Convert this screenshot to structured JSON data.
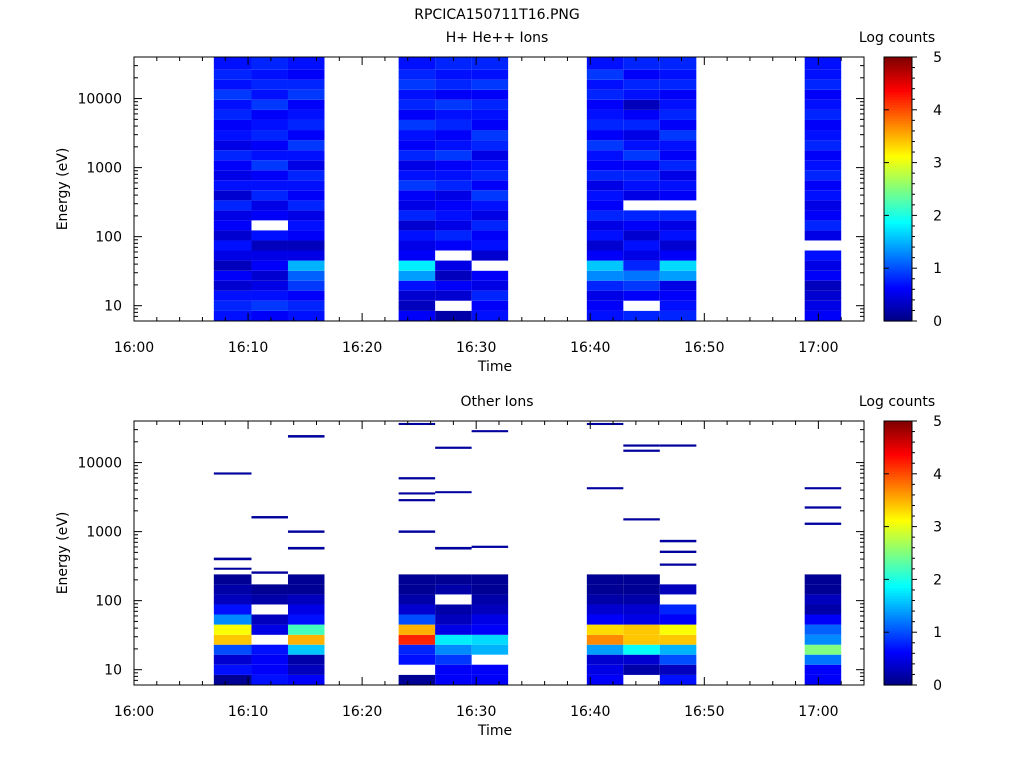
{
  "figure_title": "RPCICA150711T16.PNG",
  "chart_data": [
    {
      "type": "heatmap",
      "subtitle": "H+ He++ Ions",
      "xlabel": "Time",
      "ylabel": "Energy (eV)",
      "x_ticks": [
        "16:00",
        "16:10",
        "16:20",
        "16:30",
        "16:40",
        "16:50",
        "17:00"
      ],
      "x_range_min": [
        0,
        64
      ],
      "y_scale": "log",
      "y_ticks": [
        "10",
        "100",
        "1000",
        "10000"
      ],
      "y_ticks_values": [
        10,
        100,
        1000,
        10000
      ],
      "y_range": [
        6,
        40000
      ],
      "colorbar": {
        "label": "Log counts",
        "ticks": [
          "0",
          "1",
          "2",
          "3",
          "4",
          "5"
        ],
        "range": [
          0,
          5
        ],
        "colormap": "jet"
      },
      "time_columns_min": [
        [
          7,
          10.3
        ],
        [
          10.3,
          13.5
        ],
        [
          13.5,
          16.7
        ],
        [
          23.2,
          26.4
        ],
        [
          26.4,
          29.6
        ],
        [
          29.6,
          32.8
        ],
        [
          39.7,
          42.9
        ],
        [
          42.9,
          46.1
        ],
        [
          46.1,
          49.3
        ],
        [
          58.8,
          62
        ]
      ],
      "energy_bins_ev": [
        [
          6,
          8.4
        ],
        [
          8.4,
          11.8
        ],
        [
          11.8,
          16.5
        ],
        [
          16.5,
          23
        ],
        [
          23,
          32
        ],
        [
          32,
          45
        ],
        [
          45,
          63
        ],
        [
          63,
          88
        ],
        [
          88,
          123
        ],
        [
          123,
          172
        ],
        [
          172,
          240
        ],
        [
          240,
          335
        ],
        [
          335,
          470
        ],
        [
          470,
          655
        ],
        [
          655,
          915
        ],
        [
          915,
          1280
        ],
        [
          1280,
          1790
        ],
        [
          1790,
          2500
        ],
        [
          2500,
          3500
        ],
        [
          3500,
          4900
        ],
        [
          4900,
          6850
        ],
        [
          6850,
          9600
        ],
        [
          9600,
          13400
        ],
        [
          13400,
          18700
        ],
        [
          18700,
          26200
        ],
        [
          26200,
          40000
        ]
      ],
      "log_counts": [
        [
          0.7,
          0.8,
          0.7,
          0.4,
          0.6,
          0.3,
          0.5,
          0.7,
          0.4,
          0.6,
          0.5,
          0.8,
          0.4,
          0.7,
          0.5,
          0.6,
          0.8,
          0.5,
          0.7,
          0.6,
          0.8,
          0.7,
          0.9,
          0.7,
          0.8,
          0.7
        ],
        [
          0.6,
          0.9,
          0.7,
          0.5,
          0.4,
          0.6,
          0.5,
          0.3,
          0.7,
          null,
          0.6,
          0.5,
          0.8,
          0.7,
          0.6,
          0.9,
          0.7,
          0.6,
          0.8,
          0.7,
          0.6,
          0.9,
          0.7,
          0.8,
          0.7,
          0.8
        ],
        [
          0.7,
          0.8,
          0.6,
          0.9,
          1.1,
          1.5,
          0.5,
          0.3,
          0.6,
          0.7,
          0.5,
          0.8,
          0.6,
          0.7,
          0.8,
          0.5,
          0.7,
          0.9,
          0.6,
          0.8,
          0.7,
          0.6,
          0.9,
          0.8,
          0.6,
          0.7
        ],
        [
          0.6,
          0.3,
          0.4,
          0.7,
          1.4,
          1.8,
          0.6,
          0.5,
          0.7,
          0.4,
          0.8,
          0.5,
          0.6,
          0.9,
          0.7,
          0.5,
          0.8,
          0.6,
          0.7,
          0.9,
          0.6,
          0.8,
          0.7,
          0.9,
          0.8,
          0.7
        ],
        [
          0.2,
          null,
          0.4,
          0.6,
          0.3,
          0.5,
          null,
          0.6,
          0.8,
          0.5,
          0.7,
          0.6,
          0.5,
          0.8,
          0.7,
          0.6,
          0.9,
          0.7,
          0.6,
          0.8,
          0.7,
          0.9,
          0.6,
          0.8,
          0.7,
          0.8
        ],
        [
          0.7,
          0.6,
          0.8,
          0.5,
          0.6,
          null,
          0.4,
          0.7,
          0.6,
          0.8,
          0.5,
          0.7,
          0.9,
          0.6,
          0.8,
          0.7,
          0.5,
          0.8,
          0.9,
          0.6,
          0.7,
          0.8,
          0.6,
          0.9,
          0.7,
          0.8
        ],
        [
          0.7,
          0.6,
          0.5,
          0.8,
          1.3,
          1.6,
          0.6,
          0.4,
          0.7,
          0.5,
          0.8,
          0.6,
          0.7,
          0.5,
          0.8,
          0.6,
          0.7,
          0.9,
          0.6,
          0.8,
          0.7,
          0.6,
          0.8,
          0.7,
          0.9,
          0.7
        ],
        [
          0.8,
          null,
          0.6,
          0.9,
          1.2,
          0.8,
          0.5,
          0.7,
          0.4,
          0.6,
          0.8,
          null,
          0.5,
          0.7,
          0.8,
          0.6,
          0.9,
          0.7,
          0.5,
          0.8,
          0.6,
          0.3,
          0.7,
          0.8,
          0.6,
          0.8
        ],
        [
          0.8,
          0.7,
          0.6,
          0.5,
          1.4,
          1.7,
          0.6,
          0.4,
          0.7,
          0.5,
          0.8,
          null,
          0.6,
          0.7,
          0.5,
          0.8,
          0.6,
          0.7,
          0.9,
          0.6,
          0.8,
          0.7,
          0.6,
          0.8,
          0.7,
          0.8
        ],
        [
          0.6,
          0.5,
          0.4,
          0.3,
          0.6,
          0.5,
          0.7,
          null,
          0.5,
          0.8,
          0.6,
          0.5,
          0.7,
          0.6,
          0.8,
          0.7,
          0.6,
          0.8,
          0.7,
          0.6,
          0.8,
          0.7,
          0.6,
          0.8,
          0.7,
          0.7
        ]
      ]
    },
    {
      "type": "heatmap",
      "subtitle": "Other Ions",
      "xlabel": "Time",
      "ylabel": "Energy (eV)",
      "x_ticks": [
        "16:00",
        "16:10",
        "16:20",
        "16:30",
        "16:40",
        "16:50",
        "17:00"
      ],
      "x_range_min": [
        0,
        64
      ],
      "y_scale": "log",
      "y_ticks": [
        "10",
        "100",
        "1000",
        "10000"
      ],
      "y_ticks_values": [
        10,
        100,
        1000,
        10000
      ],
      "y_range": [
        6,
        40000
      ],
      "colorbar": {
        "label": "Log counts",
        "ticks": [
          "0",
          "1",
          "2",
          "3",
          "4",
          "5"
        ],
        "range": [
          0,
          5
        ],
        "colormap": "jet"
      },
      "time_columns_min": [
        [
          7,
          10.3
        ],
        [
          10.3,
          13.5
        ],
        [
          13.5,
          16.7
        ],
        [
          23.2,
          26.4
        ],
        [
          26.4,
          29.6
        ],
        [
          29.6,
          32.8
        ],
        [
          39.7,
          42.9
        ],
        [
          42.9,
          46.1
        ],
        [
          46.1,
          49.3
        ],
        [
          58.8,
          62
        ]
      ],
      "energy_bins_ev": [
        [
          6,
          8.4
        ],
        [
          8.4,
          11.8
        ],
        [
          11.8,
          16.5
        ],
        [
          16.5,
          23
        ],
        [
          23,
          32
        ],
        [
          32,
          45
        ],
        [
          45,
          63
        ],
        [
          63,
          88
        ],
        [
          88,
          123
        ],
        [
          123,
          172
        ],
        [
          172,
          240
        ]
      ],
      "log_counts": [
        [
          0.1,
          0.7,
          0.4,
          1.0,
          3.4,
          3.1,
          1.3,
          0.7,
          0.3,
          0.2,
          0.1
        ],
        [
          0.7,
          0.6,
          0.6,
          0.7,
          null,
          0.5,
          0.3,
          null,
          0.2,
          0.1,
          null
        ],
        [
          0.6,
          0.3,
          0.2,
          1.6,
          3.5,
          2.2,
          0.7,
          0.5,
          0.3,
          0.1,
          0.1
        ],
        [
          0.1,
          null,
          0.7,
          0.8,
          4.2,
          3.5,
          1.0,
          0.4,
          0.2,
          0.1,
          0.1
        ],
        [
          0.6,
          0.6,
          0.9,
          1.3,
          1.8,
          0.5,
          0.3,
          0.2,
          null,
          0.2,
          0.1
        ],
        [
          0.6,
          0.6,
          null,
          1.5,
          1.7,
          0.6,
          0.5,
          0.3,
          0.2,
          0.1,
          0.1
        ],
        [
          0.6,
          0.5,
          0.4,
          1.4,
          3.7,
          3.3,
          0.6,
          0.4,
          0.2,
          0.1,
          0.1
        ],
        [
          null,
          0.2,
          0.4,
          1.9,
          3.4,
          3.4,
          0.5,
          0.4,
          0.2,
          0.1,
          0.1
        ],
        [
          0.7,
          0.3,
          1.0,
          1.5,
          3.4,
          3.1,
          0.6,
          0.8,
          null,
          0.3,
          null
        ],
        [
          0.6,
          0.6,
          1.2,
          2.5,
          1.3,
          1.1,
          0.6,
          0.2,
          0.3,
          0.1,
          0.1
        ]
      ],
      "isolated_counts": [
        {
          "t": [
            7,
            10.3
          ],
          "ev": [
            6700,
            7200
          ],
          "v": 0.15
        },
        {
          "t": [
            7,
            10.3
          ],
          "ev": [
            385,
            420
          ],
          "v": 0.15
        },
        {
          "t": [
            7,
            10.3
          ],
          "ev": [
            280,
            300
          ],
          "v": 0.15
        },
        {
          "t": [
            10.3,
            13.5
          ],
          "ev": [
            1550,
            1680
          ],
          "v": 0.15
        },
        {
          "t": [
            10.3,
            13.5
          ],
          "ev": [
            245,
            265
          ],
          "v": 0.15
        },
        {
          "t": [
            13.5,
            16.7
          ],
          "ev": [
            23000,
            25000
          ],
          "v": 0.15
        },
        {
          "t": [
            13.5,
            16.7
          ],
          "ev": [
            960,
            1040
          ],
          "v": 0.15
        },
        {
          "t": [
            13.5,
            16.7
          ],
          "ev": [
            550,
            600
          ],
          "v": 0.15
        },
        {
          "t": [
            23.2,
            26.4
          ],
          "ev": [
            35000,
            37500
          ],
          "v": 0.15
        },
        {
          "t": [
            23.2,
            26.4
          ],
          "ev": [
            5700,
            6150
          ],
          "v": 0.15
        },
        {
          "t": [
            23.2,
            26.4
          ],
          "ev": [
            3450,
            3700
          ],
          "v": 0.15
        },
        {
          "t": [
            23.2,
            26.4
          ],
          "ev": [
            2750,
            2960
          ],
          "v": 0.15
        },
        {
          "t": [
            23.2,
            26.4
          ],
          "ev": [
            960,
            1040
          ],
          "v": 0.15
        },
        {
          "t": [
            26.4,
            29.6
          ],
          "ev": [
            15800,
            17000
          ],
          "v": 0.15
        },
        {
          "t": [
            26.4,
            29.6
          ],
          "ev": [
            3600,
            3850
          ],
          "v": 0.15
        },
        {
          "t": [
            26.4,
            29.6
          ],
          "ev": [
            550,
            600
          ],
          "v": 0.15
        },
        {
          "t": [
            29.6,
            32.8
          ],
          "ev": [
            27500,
            29500
          ],
          "v": 0.15
        },
        {
          "t": [
            29.6,
            32.8
          ],
          "ev": [
            580,
            625
          ],
          "v": 0.15
        },
        {
          "t": [
            39.7,
            42.9
          ],
          "ev": [
            35000,
            37500
          ],
          "v": 0.15
        },
        {
          "t": [
            39.7,
            42.9
          ],
          "ev": [
            4100,
            4400
          ],
          "v": 0.15
        },
        {
          "t": [
            42.9,
            46.1
          ],
          "ev": [
            17000,
            18300
          ],
          "v": 0.15
        },
        {
          "t": [
            42.9,
            46.1
          ],
          "ev": [
            14300,
            15400
          ],
          "v": 0.15
        },
        {
          "t": [
            42.9,
            46.1
          ],
          "ev": [
            1450,
            1560
          ],
          "v": 0.15
        },
        {
          "t": [
            46.1,
            49.3
          ],
          "ev": [
            17000,
            18300
          ],
          "v": 0.15
        },
        {
          "t": [
            46.1,
            49.3
          ],
          "ev": [
            700,
            760
          ],
          "v": 0.15
        },
        {
          "t": [
            46.1,
            49.3
          ],
          "ev": [
            490,
            530
          ],
          "v": 0.15
        },
        {
          "t": [
            46.1,
            49.3
          ],
          "ev": [
            320,
            345
          ],
          "v": 0.15
        },
        {
          "t": [
            58.8,
            62
          ],
          "ev": [
            4100,
            4400
          ],
          "v": 0.15
        },
        {
          "t": [
            58.8,
            62
          ],
          "ev": [
            2150,
            2320
          ],
          "v": 0.15
        },
        {
          "t": [
            58.8,
            62
          ],
          "ev": [
            1250,
            1350
          ],
          "v": 0.15
        }
      ]
    }
  ]
}
